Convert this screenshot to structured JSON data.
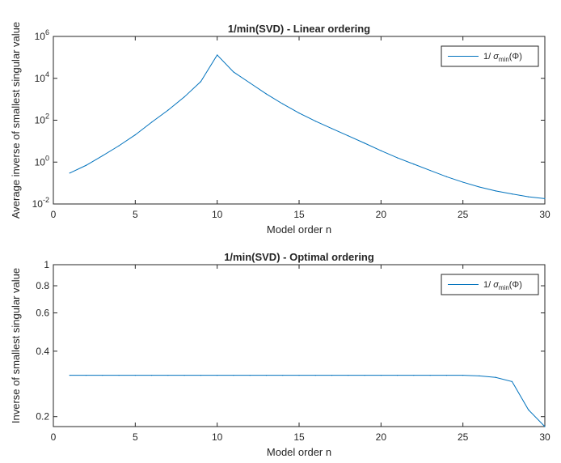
{
  "chart_data": [
    {
      "type": "line",
      "title": "1/min(SVD) - Linear ordering",
      "xlabel": "Model order n",
      "ylabel": "Average inverse of smallest singular value",
      "xlim": [
        0,
        30
      ],
      "ylim": [
        0.01,
        1000000
      ],
      "yscale": "log",
      "grid": false,
      "legend_position": "top-right",
      "x_ticks": [
        "0",
        "5",
        "10",
        "15",
        "20",
        "25",
        "30"
      ],
      "y_ticks": [
        {
          "base": "10",
          "exp": "-2",
          "value": 0.01
        },
        {
          "base": "10",
          "exp": "0",
          "value": 1
        },
        {
          "base": "10",
          "exp": "2",
          "value": 100
        },
        {
          "base": "10",
          "exp": "4",
          "value": 10000
        },
        {
          "base": "10",
          "exp": "6",
          "value": 1000000
        }
      ],
      "legend": {
        "prefix": "1/ ",
        "sym": "σ",
        "sub": "min",
        "suffix": "(Φ)"
      },
      "series": [
        {
          "color": "#0072BD",
          "x": [
            1,
            2,
            3,
            4,
            5,
            6,
            7,
            8,
            9,
            10,
            11,
            12,
            13,
            14,
            15,
            16,
            17,
            18,
            19,
            20,
            21,
            22,
            23,
            24,
            25,
            26,
            27,
            28,
            29,
            30
          ],
          "y": [
            0.3,
            0.7,
            2,
            6,
            20,
            80,
            300,
            1300,
            7000,
            130000,
            20000,
            6000,
            1800,
            600,
            220,
            90,
            40,
            18,
            8,
            3.5,
            1.6,
            0.8,
            0.4,
            0.2,
            0.11,
            0.065,
            0.042,
            0.03,
            0.022,
            0.018
          ]
        }
      ]
    },
    {
      "type": "line",
      "title": "1/min(SVD) - Optimal ordering",
      "xlabel": "Model order n",
      "ylabel": "Inverse of smallest singular value",
      "xlim": [
        0,
        30
      ],
      "ylim": [
        0.18,
        1
      ],
      "yscale": "log",
      "grid": false,
      "legend_position": "top-right",
      "x_ticks": [
        "0",
        "5",
        "10",
        "15",
        "20",
        "25",
        "30"
      ],
      "y_ticks": [
        {
          "label": "0.2",
          "value": 0.2
        },
        {
          "label": "0.4",
          "value": 0.4
        },
        {
          "label": "0.6",
          "value": 0.6
        },
        {
          "label": "0.8",
          "value": 0.8
        },
        {
          "label": "1",
          "value": 1
        }
      ],
      "legend": {
        "prefix": "1/ ",
        "sym": "σ",
        "sub": "min",
        "suffix": "(Φ)"
      },
      "series": [
        {
          "color": "#0072BD",
          "x": [
            1,
            2,
            3,
            4,
            5,
            6,
            7,
            8,
            9,
            10,
            11,
            12,
            13,
            14,
            15,
            16,
            17,
            18,
            19,
            20,
            21,
            22,
            23,
            24,
            25,
            26,
            27,
            28,
            29,
            30
          ],
          "y": [
            0.31,
            0.31,
            0.31,
            0.31,
            0.31,
            0.31,
            0.31,
            0.31,
            0.31,
            0.31,
            0.31,
            0.31,
            0.31,
            0.31,
            0.31,
            0.31,
            0.31,
            0.31,
            0.31,
            0.31,
            0.31,
            0.31,
            0.31,
            0.31,
            0.31,
            0.308,
            0.303,
            0.29,
            0.215,
            0.18
          ]
        }
      ]
    }
  ]
}
